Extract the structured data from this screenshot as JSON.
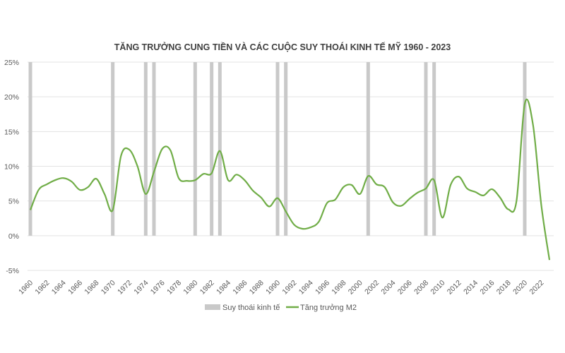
{
  "chart_data": {
    "type": "line",
    "title": "TĂNG TRƯỞNG CUNG TIỀN VÀ CÁC CUỘC SUY THOÁI KINH TẾ MỸ 1960 - 2023",
    "xlabel": "",
    "ylabel": "",
    "ylim": [
      -5,
      25
    ],
    "yticks": [
      25,
      20,
      15,
      10,
      5,
      0,
      -5
    ],
    "ytick_labels": [
      "25%",
      "20%",
      "15%",
      "10%",
      "5%",
      "0%",
      "-5%"
    ],
    "xticks": [
      "1960",
      "1962",
      "1964",
      "1966",
      "1968",
      "1970",
      "1972",
      "1974",
      "1976",
      "1978",
      "1980",
      "1982",
      "1984",
      "1986",
      "1988",
      "1990",
      "1992",
      "1994",
      "1996",
      "1998",
      "2000",
      "2002",
      "2004",
      "2006",
      "2008",
      "2010",
      "2012",
      "2014",
      "2016",
      "2018",
      "2020",
      "2022"
    ],
    "grid": true,
    "legend": "bottom",
    "x": [
      1960,
      1961,
      1962,
      1963,
      1964,
      1965,
      1966,
      1967,
      1968,
      1969,
      1970,
      1971,
      1972,
      1973,
      1974,
      1975,
      1976,
      1977,
      1978,
      1979,
      1980,
      1981,
      1982,
      1983,
      1984,
      1985,
      1986,
      1987,
      1988,
      1989,
      1990,
      1991,
      1992,
      1993,
      1994,
      1995,
      1996,
      1997,
      1998,
      1999,
      2000,
      2001,
      2002,
      2003,
      2004,
      2005,
      2006,
      2007,
      2008,
      2009,
      2010,
      2011,
      2012,
      2013,
      2014,
      2015,
      2016,
      2017,
      2018,
      2019,
      2020,
      2021,
      2022,
      2023
    ],
    "series": [
      {
        "name": "Suy thoái kinh tế",
        "kind": "bar",
        "color": "#c9c9c9",
        "recession_years": [
          1960,
          1970,
          1974,
          1975,
          1980,
          1982,
          1983,
          1990,
          1991,
          2001,
          2008,
          2009,
          2020
        ]
      },
      {
        "name": "Tăng trưởng M2",
        "kind": "line",
        "color": "#70ad47",
        "values": [
          3.7,
          6.6,
          7.4,
          8.0,
          8.3,
          7.8,
          6.6,
          7.0,
          8.2,
          6.0,
          3.7,
          11.5,
          12.4,
          10.0,
          6.0,
          9.2,
          12.5,
          12.3,
          8.3,
          7.9,
          8.0,
          8.9,
          9.0,
          12.2,
          8.0,
          8.8,
          8.0,
          6.5,
          5.5,
          4.2,
          5.4,
          3.5,
          1.6,
          1.0,
          1.2,
          2.0,
          4.7,
          5.2,
          7.0,
          7.3,
          6.0,
          8.6,
          7.4,
          7.0,
          4.8,
          4.3,
          5.3,
          6.2,
          6.8,
          8.0,
          2.6,
          7.3,
          8.5,
          6.8,
          6.3,
          5.8,
          6.7,
          5.5,
          3.8,
          5.0,
          19.0,
          16.0,
          4.5,
          -3.5
        ]
      }
    ]
  }
}
